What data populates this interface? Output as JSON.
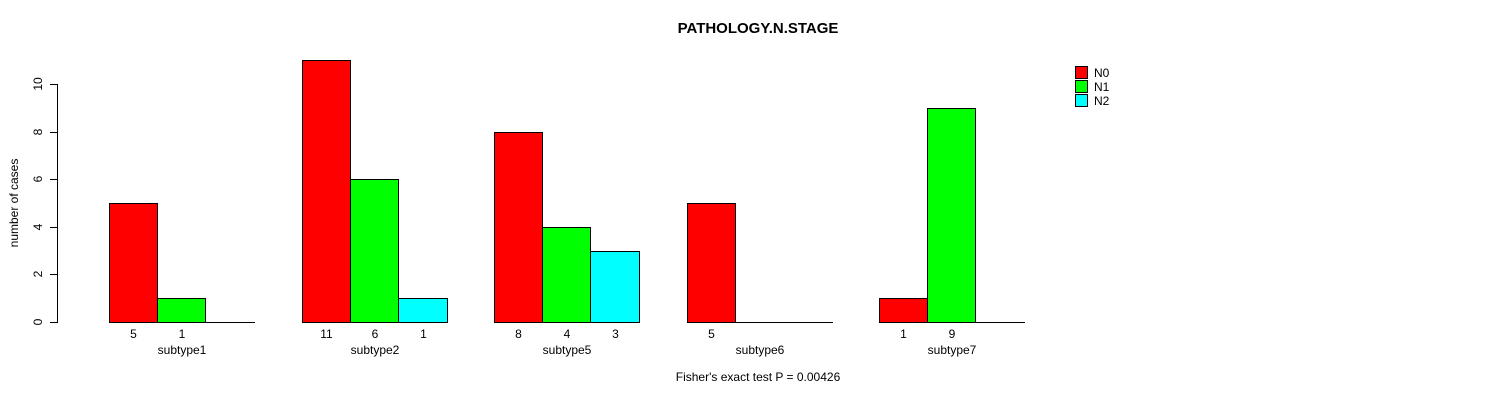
{
  "chart_data": {
    "type": "bar",
    "title": "PATHOLOGY.N.STAGE",
    "xlabel": "",
    "ylabel": "number of cases",
    "ylim": [
      0,
      11
    ],
    "yticks": [
      0,
      2,
      4,
      6,
      8,
      10
    ],
    "grid": false,
    "legend_position": "top-right",
    "bar_border_color": "#000000",
    "categories": [
      "subtype1",
      "subtype2",
      "subtype5",
      "subtype6",
      "subtype7"
    ],
    "series": [
      {
        "name": "N0",
        "color": "#ff0000",
        "values": [
          5,
          11,
          8,
          5,
          1
        ]
      },
      {
        "name": "N1",
        "color": "#00ff00",
        "values": [
          1,
          6,
          4,
          0,
          9
        ]
      },
      {
        "name": "N2",
        "color": "#00ffff",
        "values": [
          0,
          1,
          3,
          0,
          0
        ]
      }
    ],
    "bar_value_labels": [
      [
        "5",
        "1",
        ""
      ],
      [
        "11",
        "6",
        "1"
      ],
      [
        "8",
        "4",
        "3"
      ],
      [
        "5",
        "",
        ""
      ],
      [
        "1",
        "9",
        ""
      ]
    ],
    "annotation": "Fisher's exact test P = 0.00426"
  }
}
